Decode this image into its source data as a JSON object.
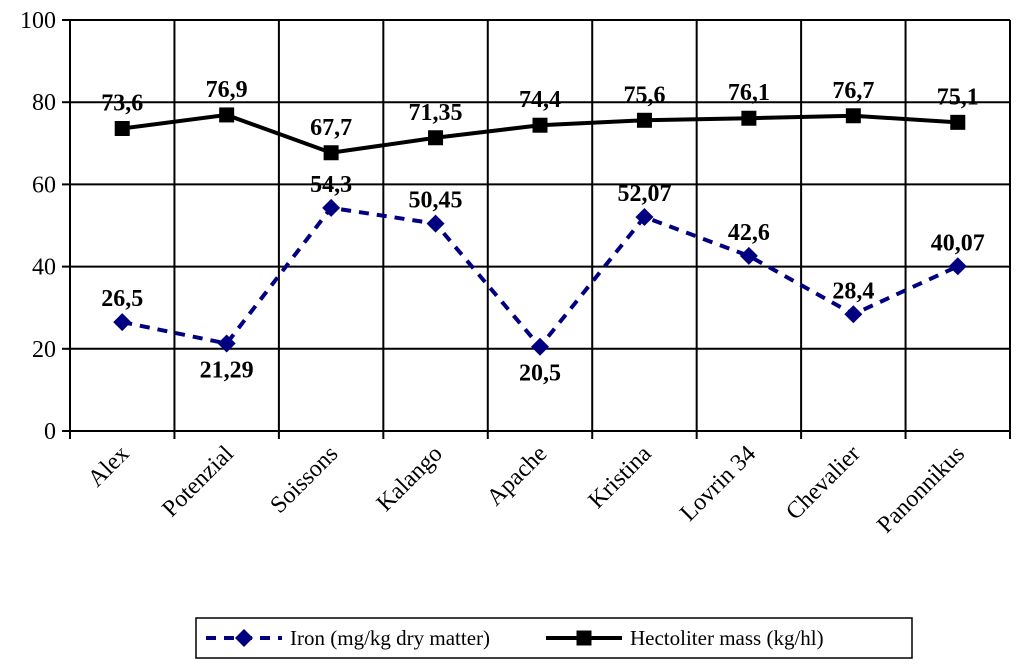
{
  "chart_data": {
    "type": "line",
    "categories": [
      "Alex",
      "Potenzial",
      "Soissons",
      "Kalango",
      "Apache",
      "Kristina",
      "Lovrin 34",
      "Chevalier",
      "Panonnikus"
    ],
    "ylim": [
      0,
      100
    ],
    "yticks": [
      0,
      20,
      40,
      60,
      80,
      100
    ],
    "grid": true,
    "legend_position": "bottom",
    "series": [
      {
        "name": "Iron (mg/kg dry matter)",
        "values": [
          26.5,
          21.29,
          54.3,
          50.45,
          20.5,
          52.07,
          42.6,
          28.4,
          40.07
        ],
        "labels": [
          "26,5",
          "21,29",
          "54,3",
          "50,45",
          "20,5",
          "52,07",
          "42,6",
          "28,4",
          "40,07"
        ],
        "color": "#000080",
        "line_style": "dashed",
        "marker": "diamond"
      },
      {
        "name": "Hectoliter mass (kg/hl)",
        "values": [
          73.6,
          76.9,
          67.7,
          71.35,
          74.4,
          75.6,
          76.1,
          76.7,
          75.1
        ],
        "labels": [
          "73,6",
          "76,9",
          "67,7",
          "71,35",
          "74,4",
          "75,6",
          "76,1",
          "76,7",
          "75,1"
        ],
        "color": "#000000",
        "line_style": "solid",
        "marker": "square"
      }
    ]
  }
}
